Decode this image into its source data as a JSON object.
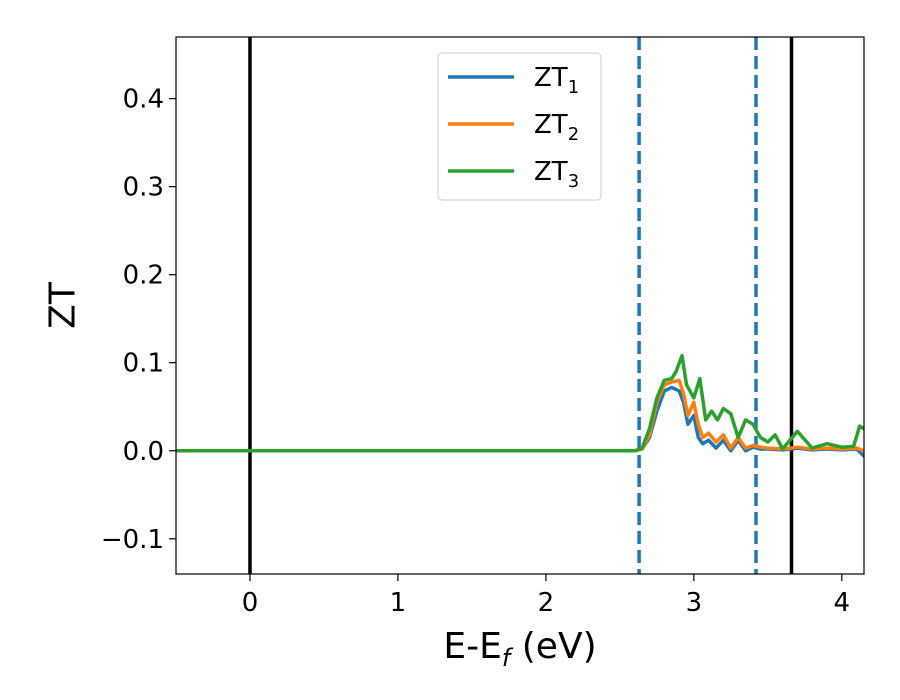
{
  "chart_data": {
    "type": "line",
    "title": "",
    "xlabel": {
      "main": "E-E",
      "sub": "f",
      "suffix": " (eV)"
    },
    "ylabel": "ZT",
    "xlim": [
      -0.5,
      4.15
    ],
    "ylim": [
      -0.14,
      0.47
    ],
    "xticks": [
      0,
      1,
      2,
      3,
      4
    ],
    "xtick_labels": [
      "0",
      "1",
      "2",
      "3",
      "4"
    ],
    "yticks": [
      -0.1,
      0.0,
      0.1,
      0.2,
      0.3,
      0.4
    ],
    "ytick_labels": [
      "−0.1",
      "0.0",
      "0.1",
      "0.2",
      "0.3",
      "0.4"
    ],
    "grid": false,
    "legend_position": "top-center",
    "vertical_lines": [
      {
        "x": 0.0,
        "style": "solid",
        "color": "#000000"
      },
      {
        "x": 3.66,
        "style": "solid",
        "color": "#000000"
      },
      {
        "x": 2.63,
        "style": "dashed",
        "color": "#1f77b4"
      },
      {
        "x": 3.42,
        "style": "dashed",
        "color": "#1f77b4"
      }
    ],
    "series": [
      {
        "name": "ZT",
        "sub": "1",
        "color": "#1f77b4",
        "x": [
          -0.5,
          2.6,
          2.65,
          2.7,
          2.75,
          2.8,
          2.85,
          2.9,
          2.93,
          2.96,
          3.0,
          3.03,
          3.06,
          3.1,
          3.15,
          3.2,
          3.25,
          3.3,
          3.35,
          3.4,
          3.45,
          3.5,
          3.6,
          3.7,
          3.8,
          3.9,
          4.0,
          4.1,
          4.15
        ],
        "y": [
          0.0,
          0.0,
          0.002,
          0.015,
          0.045,
          0.068,
          0.072,
          0.068,
          0.055,
          0.03,
          0.04,
          0.015,
          0.008,
          0.012,
          0.003,
          0.012,
          0.0,
          0.012,
          0.0,
          0.004,
          0.002,
          0.002,
          0.001,
          0.003,
          0.001,
          0.002,
          0.001,
          0.002,
          -0.006
        ]
      },
      {
        "name": "ZT",
        "sub": "2",
        "color": "#ff7f0e",
        "x": [
          -0.5,
          2.6,
          2.65,
          2.7,
          2.75,
          2.8,
          2.85,
          2.9,
          2.93,
          2.96,
          3.0,
          3.03,
          3.06,
          3.1,
          3.15,
          3.2,
          3.25,
          3.3,
          3.35,
          3.4,
          3.45,
          3.5,
          3.6,
          3.7,
          3.8,
          3.9,
          4.0,
          4.1,
          4.15
        ],
        "y": [
          0.0,
          0.0,
          0.002,
          0.018,
          0.055,
          0.075,
          0.078,
          0.08,
          0.065,
          0.04,
          0.055,
          0.03,
          0.015,
          0.02,
          0.01,
          0.018,
          0.003,
          0.015,
          0.003,
          0.006,
          0.004,
          0.003,
          0.002,
          0.004,
          0.002,
          0.003,
          0.002,
          0.003,
          0.0
        ]
      },
      {
        "name": "ZT",
        "sub": "3",
        "color": "#2ca02c",
        "x": [
          -0.5,
          2.6,
          2.65,
          2.7,
          2.75,
          2.8,
          2.85,
          2.88,
          2.92,
          2.95,
          3.0,
          3.04,
          3.08,
          3.12,
          3.16,
          3.2,
          3.25,
          3.3,
          3.35,
          3.4,
          3.45,
          3.5,
          3.55,
          3.6,
          3.7,
          3.8,
          3.9,
          4.0,
          4.08,
          4.12,
          4.15
        ],
        "y": [
          0.0,
          0.0,
          0.003,
          0.025,
          0.06,
          0.08,
          0.082,
          0.09,
          0.108,
          0.075,
          0.06,
          0.082,
          0.035,
          0.045,
          0.035,
          0.048,
          0.042,
          0.015,
          0.035,
          0.03,
          0.015,
          0.01,
          0.018,
          0.002,
          0.022,
          0.003,
          0.008,
          0.004,
          0.005,
          0.028,
          0.025
        ]
      }
    ]
  }
}
